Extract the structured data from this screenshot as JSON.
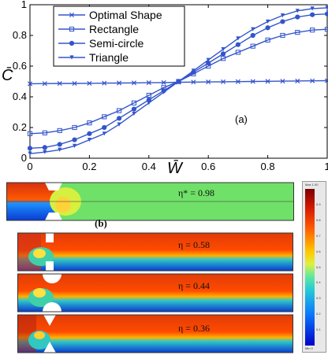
{
  "chart_data": {
    "type": "line",
    "xlabel": "W̄",
    "ylabel": "C̄",
    "panel_label": "(a)",
    "xlim": [
      0,
      1
    ],
    "ylim": [
      0,
      1
    ],
    "xticks": [
      "0",
      "0.2",
      "0.4",
      "0.6",
      "0.8",
      "1"
    ],
    "yticks": [
      "0",
      "0.2",
      "0.4",
      "0.6",
      "0.8",
      "1"
    ],
    "legend_position": "top-left",
    "grid": false,
    "color": "#3355cc",
    "series": [
      {
        "name": "Optimal Shape",
        "marker": "x",
        "x": [
          0,
          0.05,
          0.1,
          0.15,
          0.2,
          0.25,
          0.3,
          0.35,
          0.4,
          0.45,
          0.5,
          0.55,
          0.6,
          0.65,
          0.7,
          0.75,
          0.8,
          0.85,
          0.9,
          0.95,
          1.0
        ],
        "y": [
          0.485,
          0.486,
          0.487,
          0.487,
          0.488,
          0.489,
          0.49,
          0.491,
          0.492,
          0.493,
          0.495,
          0.496,
          0.497,
          0.498,
          0.499,
          0.5,
          0.501,
          0.502,
          0.503,
          0.504,
          0.505
        ]
      },
      {
        "name": "Rectangle",
        "marker": "square",
        "x": [
          0,
          0.05,
          0.1,
          0.15,
          0.2,
          0.25,
          0.3,
          0.35,
          0.4,
          0.45,
          0.5,
          0.55,
          0.6,
          0.65,
          0.7,
          0.75,
          0.8,
          0.85,
          0.9,
          0.95,
          1.0
        ],
        "y": [
          0.16,
          0.165,
          0.18,
          0.2,
          0.23,
          0.27,
          0.31,
          0.36,
          0.41,
          0.46,
          0.5,
          0.55,
          0.6,
          0.65,
          0.69,
          0.73,
          0.77,
          0.8,
          0.82,
          0.835,
          0.84
        ]
      },
      {
        "name": "Semi-circle",
        "marker": "circle",
        "x": [
          0,
          0.05,
          0.1,
          0.15,
          0.2,
          0.25,
          0.3,
          0.35,
          0.4,
          0.45,
          0.5,
          0.55,
          0.6,
          0.65,
          0.7,
          0.75,
          0.8,
          0.85,
          0.9,
          0.95,
          1.0
        ],
        "y": [
          0.065,
          0.07,
          0.09,
          0.12,
          0.16,
          0.2,
          0.26,
          0.32,
          0.38,
          0.44,
          0.5,
          0.56,
          0.62,
          0.68,
          0.74,
          0.8,
          0.85,
          0.89,
          0.92,
          0.935,
          0.94
        ]
      },
      {
        "name": "Triangle",
        "marker": "triangle",
        "x": [
          0,
          0.05,
          0.1,
          0.15,
          0.2,
          0.25,
          0.3,
          0.35,
          0.4,
          0.45,
          0.5,
          0.55,
          0.6,
          0.65,
          0.7,
          0.75,
          0.8,
          0.85,
          0.9,
          0.95,
          1.0
        ],
        "y": [
          0.03,
          0.04,
          0.055,
          0.08,
          0.12,
          0.16,
          0.22,
          0.29,
          0.36,
          0.43,
          0.5,
          0.57,
          0.64,
          0.71,
          0.78,
          0.84,
          0.89,
          0.93,
          0.96,
          0.975,
          0.98
        ]
      }
    ]
  },
  "panel_b": {
    "label": "(b)",
    "labels": [
      "η* = 0.98",
      "η = 0.58",
      "η = 0.44",
      "η = 0.36"
    ],
    "colorbar": {
      "ticks": [
        "0.9",
        "0.8",
        "0.7",
        "0.6",
        "0.5",
        "0.4",
        "0.3",
        "0.2",
        "0.1"
      ],
      "max_label": "Max 1.00",
      "min_label": "Min 0"
    }
  }
}
